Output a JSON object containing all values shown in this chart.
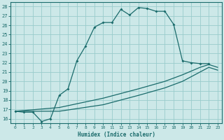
{
  "xlabel": "Humidex (Indice chaleur)",
  "bg_color": "#cce8e8",
  "grid_color": "#99cccc",
  "line_color": "#1a6b6b",
  "xlim": [
    -0.5,
    23.5
  ],
  "ylim": [
    15.5,
    28.5
  ],
  "xticks": [
    0,
    1,
    2,
    3,
    4,
    5,
    6,
    7,
    8,
    9,
    10,
    11,
    12,
    13,
    14,
    15,
    16,
    17,
    18,
    19,
    20,
    21,
    22,
    23
  ],
  "yticks": [
    16,
    17,
    18,
    19,
    20,
    21,
    22,
    23,
    24,
    25,
    26,
    27,
    28
  ],
  "curve1_x": [
    0,
    1,
    2,
    3,
    4,
    5,
    6,
    7,
    8,
    9,
    10,
    11,
    12,
    13,
    14,
    15,
    16,
    17,
    18,
    19,
    20,
    21,
    22
  ],
  "curve1_y": [
    16.8,
    16.7,
    16.7,
    15.7,
    16.0,
    18.5,
    19.2,
    22.2,
    23.8,
    25.8,
    26.3,
    26.3,
    27.7,
    27.1,
    27.9,
    27.8,
    27.5,
    27.5,
    26.1,
    22.2,
    22.0,
    21.9,
    21.9
  ],
  "curve2_x": [
    0,
    5,
    10,
    14,
    17,
    19,
    21,
    22,
    23
  ],
  "curve2_y": [
    16.8,
    17.2,
    18.2,
    19.2,
    20.0,
    20.7,
    21.5,
    21.8,
    21.5
  ],
  "curve3_x": [
    0,
    5,
    10,
    14,
    17,
    19,
    21,
    22,
    23
  ],
  "curve3_y": [
    16.8,
    16.8,
    17.5,
    18.5,
    19.3,
    20.0,
    21.0,
    21.5,
    21.2
  ]
}
